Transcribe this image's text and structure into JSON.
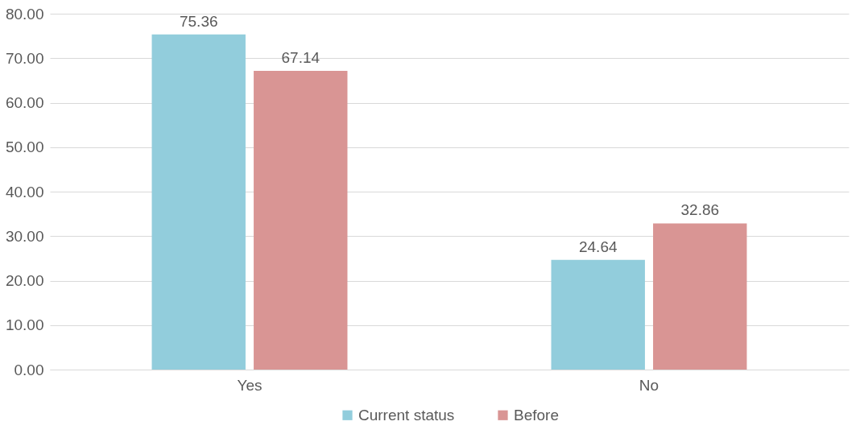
{
  "chart_data": {
    "type": "bar",
    "categories": [
      "Yes",
      "No"
    ],
    "series": [
      {
        "name": "Current status",
        "color": "#92cddc",
        "values": [
          75.36,
          24.64
        ]
      },
      {
        "name": "Before",
        "color": "#d99594",
        "values": [
          67.14,
          32.86
        ]
      }
    ],
    "ylim": [
      0,
      80
    ],
    "yticks": [
      {
        "value": 0,
        "label": "0.00"
      },
      {
        "value": 10,
        "label": "10.00"
      },
      {
        "value": 20,
        "label": "20.00"
      },
      {
        "value": 30,
        "label": "30.00"
      },
      {
        "value": 40,
        "label": "40.00"
      },
      {
        "value": 50,
        "label": "50.00"
      },
      {
        "value": 60,
        "label": "60.00"
      },
      {
        "value": 70,
        "label": "70.00"
      },
      {
        "value": 80,
        "label": "80.00"
      }
    ],
    "grid": "y",
    "legend": "bottom",
    "data_labels": true
  }
}
